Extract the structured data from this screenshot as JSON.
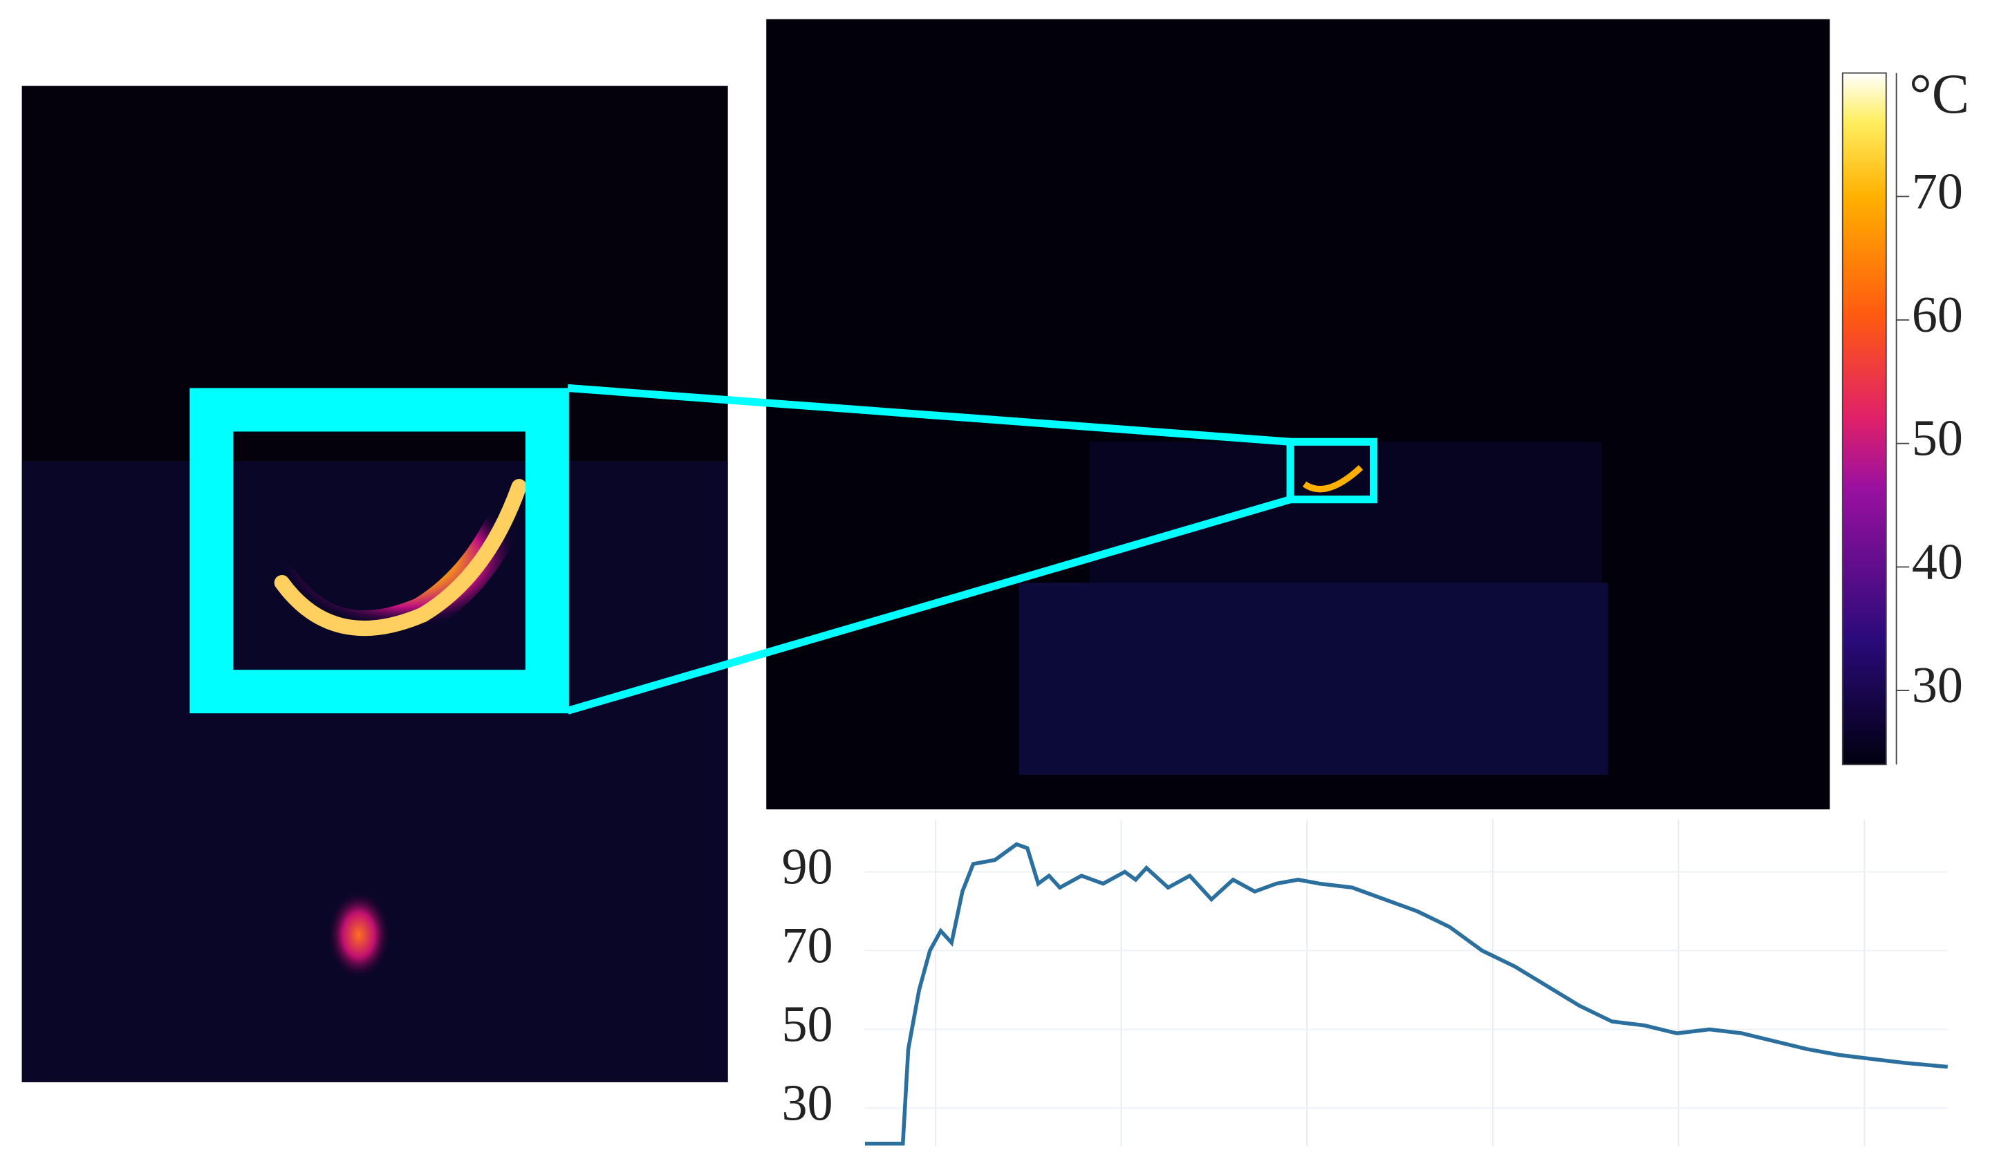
{
  "colorbar": {
    "unit": "°C",
    "lim": [
      24,
      80
    ],
    "ticks": [
      30,
      40,
      50,
      60,
      70
    ]
  },
  "chart_data": {
    "type": "line",
    "color": "#2a6f9e",
    "xlim": [
      0,
      100
    ],
    "ylim": [
      21,
      100
    ],
    "yticks": [
      30,
      50,
      70,
      90
    ],
    "x": [
      0,
      3.5,
      4,
      5,
      6,
      7,
      8,
      9,
      10,
      12,
      13,
      14,
      15,
      16,
      17,
      18,
      20,
      22,
      24,
      25,
      26,
      28,
      30,
      32,
      34,
      36,
      38,
      40,
      42,
      45,
      48,
      51,
      54,
      57,
      60,
      63,
      66,
      69,
      72,
      75,
      78,
      81,
      84,
      87,
      90,
      93,
      96,
      100
    ],
    "series": [
      {
        "color": "#2a6f9e",
        "values": [
          21,
          21,
          45,
          60,
          70,
          75,
          72,
          85,
          92,
          93,
          95,
          97,
          96,
          87,
          89,
          86,
          89,
          87,
          90,
          88,
          91,
          86,
          89,
          83,
          88,
          85,
          87,
          88,
          87,
          86,
          83,
          80,
          76,
          70,
          66,
          61,
          56,
          52,
          51,
          49,
          50,
          49,
          47,
          45,
          43.5,
          42.5,
          41.5,
          40.5
        ]
      }
    ]
  }
}
